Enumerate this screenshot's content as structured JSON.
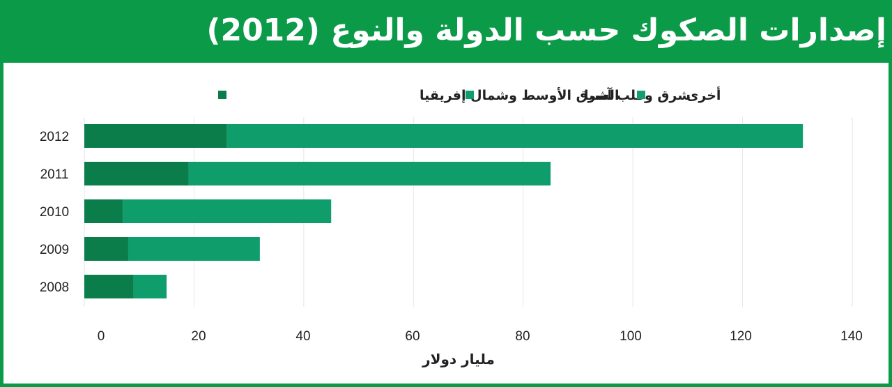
{
  "chart_data": {
    "type": "bar",
    "orientation": "horizontal",
    "stacked": true,
    "title": "إصدارات الصكوك حسب الدولة والنوع (2012)",
    "xlabel": "مليار دولار",
    "ylabel": "",
    "categories": [
      "2012",
      "2011",
      "2010",
      "2009",
      "2008"
    ],
    "series": [
      {
        "name": "الشرق الأوسط وشمال إفريقيا",
        "color": "#0b7d4b",
        "values": [
          26,
          19,
          7,
          8,
          9
        ]
      },
      {
        "name": "شرق وقلب آسيا",
        "color": "#0f9d6b",
        "values": [
          105,
          66,
          38,
          24,
          6
        ]
      },
      {
        "name": "أخرى",
        "color": "#13a06f",
        "values": [
          0,
          0,
          0,
          0,
          0
        ]
      }
    ],
    "xlim": [
      0,
      140
    ],
    "xticks": [
      "0",
      "20",
      "40",
      "60",
      "80",
      "100",
      "120",
      "140"
    ],
    "grid": true,
    "legend_position": "top"
  }
}
